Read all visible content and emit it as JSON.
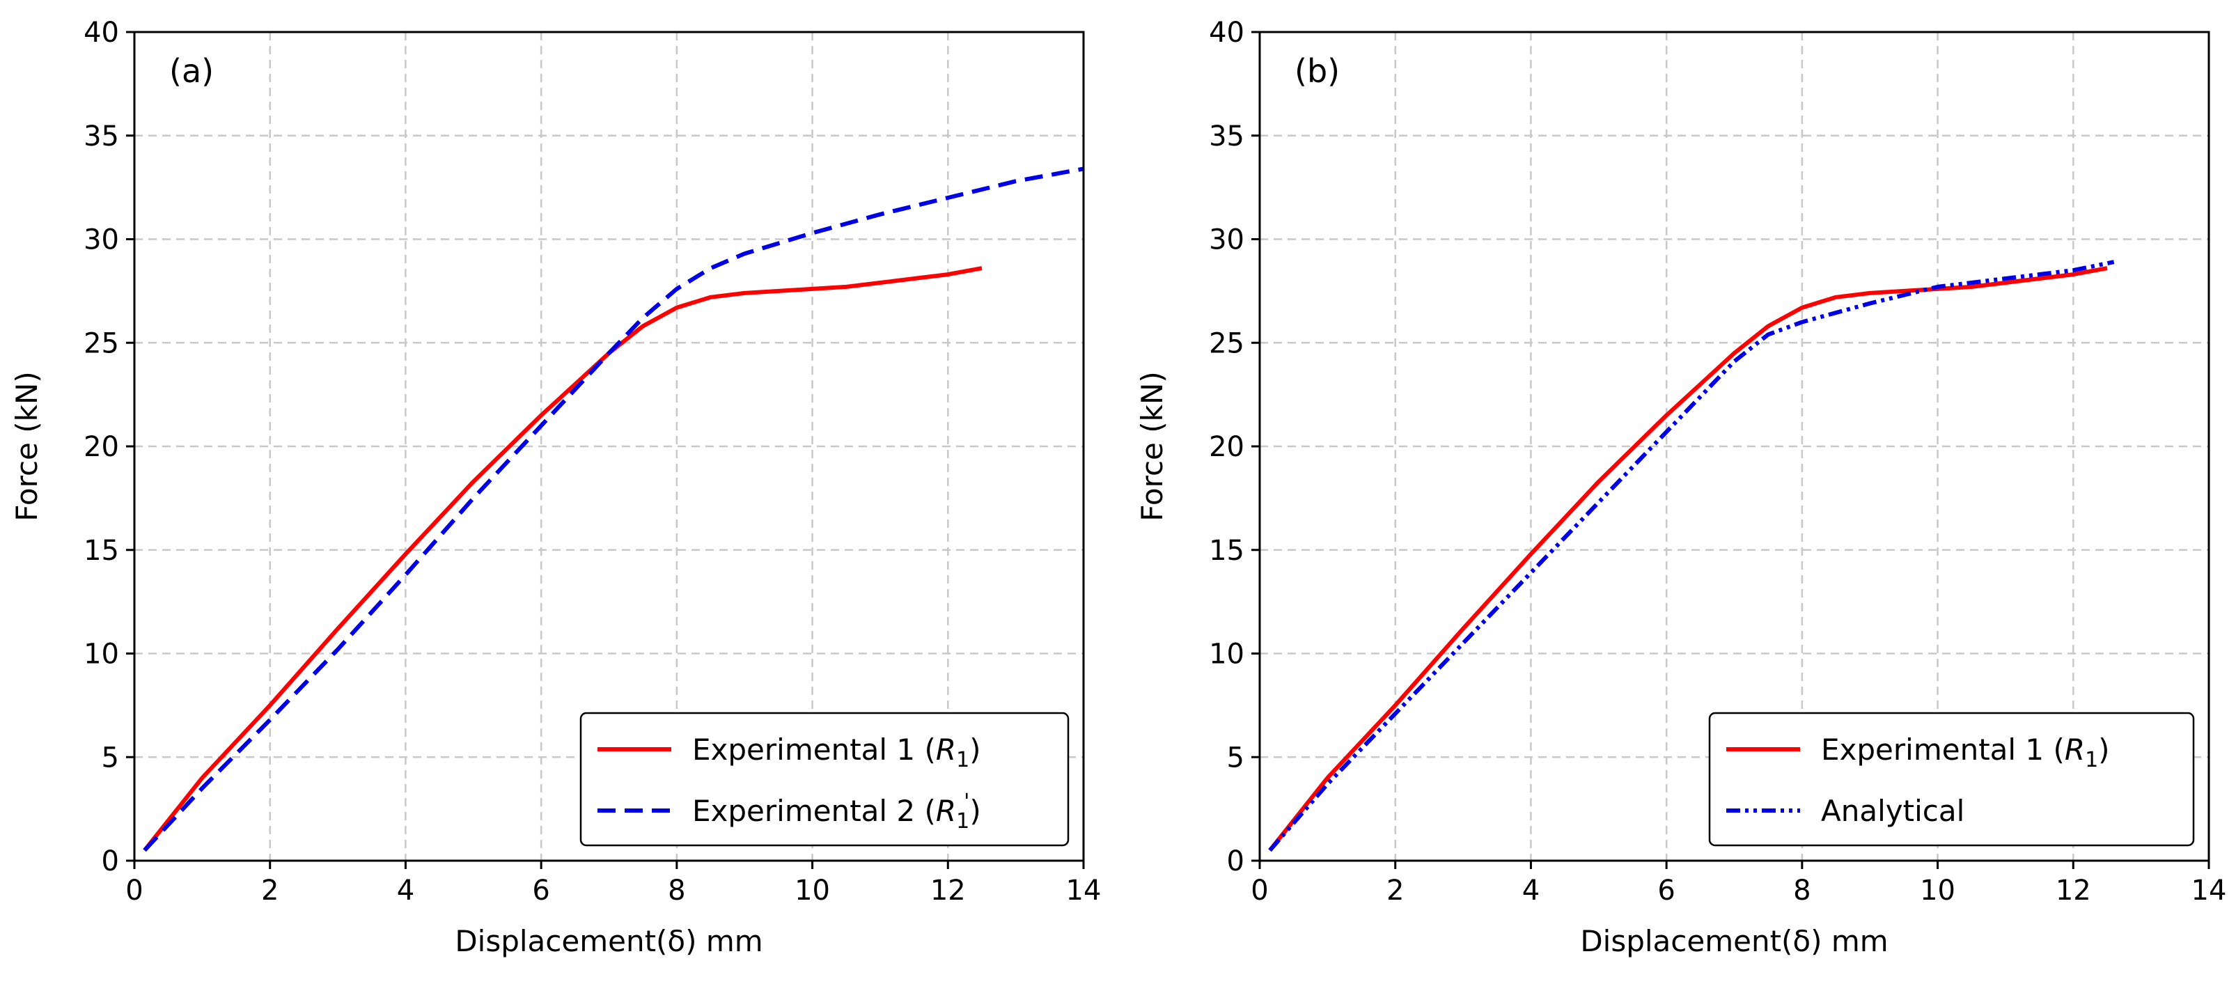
{
  "chart_data": [
    {
      "type": "line",
      "panel_label": "(a)",
      "xlabel": "Displacement(δ) mm",
      "ylabel": "Force (kN)",
      "xlim": [
        0,
        14
      ],
      "ylim": [
        0,
        40
      ],
      "xticks": [
        "0",
        "2",
        "4",
        "6",
        "8",
        "10",
        "12",
        "14"
      ],
      "yticks": [
        "0",
        "5",
        "10",
        "15",
        "20",
        "25",
        "30",
        "35",
        "40"
      ],
      "grid": true,
      "legend_position": "bottom-right",
      "series": [
        {
          "name": "Experimental 1 (R1)",
          "legend_main": "Experimental 1 (",
          "legend_sym": "R",
          "legend_sub": "1",
          "legend_close": ")",
          "color": "#ff0000",
          "style": "solid",
          "x": [
            0.15,
            1,
            2,
            3,
            4,
            5,
            6,
            6.5,
            7,
            7.5,
            8,
            8.5,
            9,
            9.5,
            10,
            10.5,
            11,
            11.5,
            12,
            12.5
          ],
          "y": [
            0.5,
            4,
            7.5,
            11.2,
            14.8,
            18.3,
            21.5,
            23,
            24.5,
            25.8,
            26.7,
            27.2,
            27.4,
            27.5,
            27.6,
            27.7,
            27.9,
            28.1,
            28.3,
            28.6
          ]
        },
        {
          "name": "Experimental 2 (R1')",
          "legend_main": "Experimental 2 (",
          "legend_sym": "R",
          "legend_sub": "1",
          "legend_sup": "'",
          "legend_close": ")",
          "color": "#0000e6",
          "style": "dashed",
          "x": [
            0.15,
            1,
            2,
            3,
            4,
            5,
            6,
            7,
            7.5,
            8,
            8.5,
            9,
            10,
            11,
            12,
            13,
            14
          ],
          "y": [
            0.5,
            3.5,
            6.8,
            10.2,
            13.8,
            17.5,
            21,
            24.5,
            26.2,
            27.6,
            28.6,
            29.3,
            30.3,
            31.2,
            32,
            32.8,
            33.4
          ]
        }
      ]
    },
    {
      "type": "line",
      "panel_label": "(b)",
      "xlabel": "Displacement(δ) mm",
      "ylabel": "Force (kN)",
      "xlim": [
        0,
        14
      ],
      "ylim": [
        0,
        40
      ],
      "xticks": [
        "0",
        "2",
        "4",
        "6",
        "8",
        "10",
        "12",
        "14"
      ],
      "yticks": [
        "0",
        "5",
        "10",
        "15",
        "20",
        "25",
        "30",
        "35",
        "40"
      ],
      "grid": true,
      "legend_position": "bottom-right",
      "series": [
        {
          "name": "Experimental 1 (R1)",
          "legend_main": "Experimental 1 (",
          "legend_sym": "R",
          "legend_sub": "1",
          "legend_close": ")",
          "color": "#ff0000",
          "style": "solid",
          "x": [
            0.15,
            1,
            2,
            3,
            4,
            5,
            6,
            6.5,
            7,
            7.5,
            8,
            8.5,
            9,
            9.5,
            10,
            10.5,
            11,
            11.5,
            12,
            12.5
          ],
          "y": [
            0.5,
            4,
            7.5,
            11.2,
            14.8,
            18.3,
            21.5,
            23,
            24.5,
            25.8,
            26.7,
            27.2,
            27.4,
            27.5,
            27.6,
            27.7,
            27.9,
            28.1,
            28.3,
            28.6
          ]
        },
        {
          "name": "Analytical",
          "legend_main": "Analytical",
          "color": "#0000e6",
          "style": "dashdotdot",
          "x": [
            0.15,
            1,
            2,
            3,
            4,
            5,
            6,
            7,
            7.5,
            8,
            9,
            10,
            11,
            12,
            12.6
          ],
          "y": [
            0.5,
            3.7,
            7.1,
            10.5,
            13.9,
            17.3,
            20.7,
            24.1,
            25.4,
            26,
            26.9,
            27.7,
            28.1,
            28.5,
            28.9
          ]
        }
      ]
    }
  ]
}
